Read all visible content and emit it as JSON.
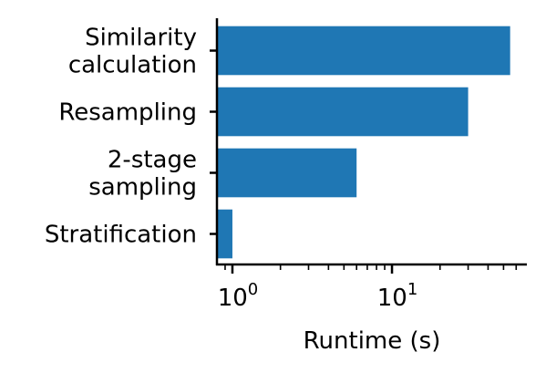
{
  "chart_data": {
    "type": "bar",
    "orientation": "horizontal",
    "categories": [
      [
        "Similarity",
        "calculation"
      ],
      [
        "Resampling"
      ],
      [
        "2-stage",
        "sampling"
      ],
      [
        "Stratification"
      ]
    ],
    "values": [
      55,
      30,
      6,
      1
    ],
    "xlabel": "Runtime (s)",
    "ylabel": "",
    "title": "",
    "x_scale": "log",
    "xlim": [
      0.8,
      70
    ],
    "x_ticks": [
      {
        "value": 1,
        "base": "10",
        "exp": "0"
      },
      {
        "value": 10,
        "base": "10",
        "exp": "1"
      }
    ],
    "grid": false,
    "legend": "none",
    "bar_color": "#1f77b4"
  }
}
